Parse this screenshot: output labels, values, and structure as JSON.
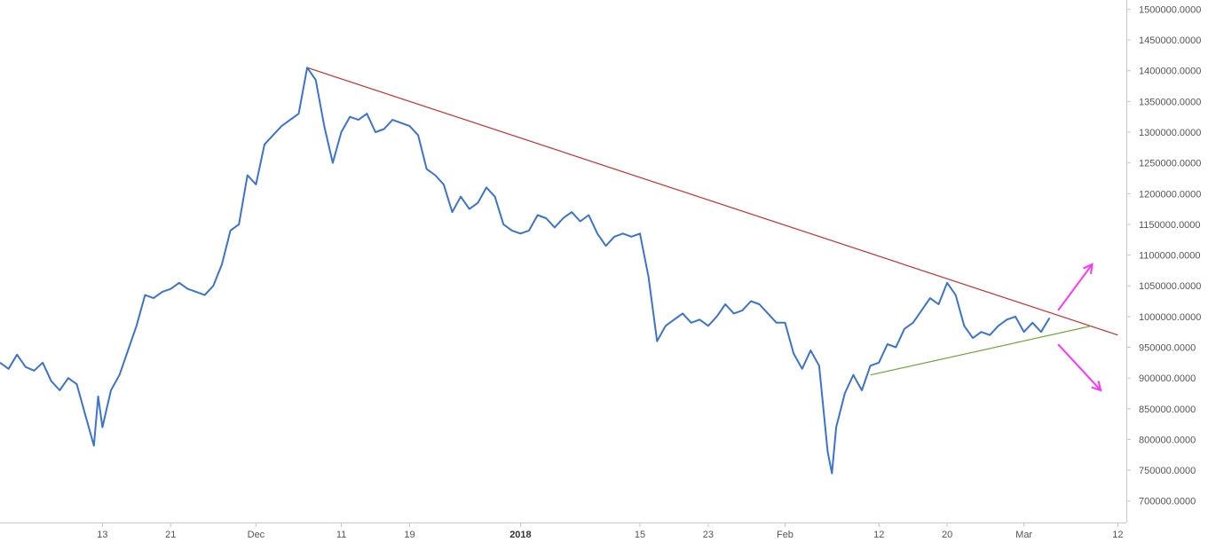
{
  "chart_data": {
    "type": "line",
    "title": "",
    "xlabel": "",
    "ylabel": "",
    "x_range": [
      "2017-11-01",
      "2018-03-13"
    ],
    "ylim": [
      665000,
      1515000
    ],
    "y_ticks": [
      "1500000.0000",
      "1450000.0000",
      "1400000.0000",
      "1350000.0000",
      "1300000.0000",
      "1250000.0000",
      "1200000.0000",
      "1150000.0000",
      "1100000.0000",
      "1050000.0000",
      "1000000.0000",
      "950000.0000",
      "900000.0000",
      "850000.0000",
      "800000.0000",
      "750000.0000",
      "700000.0000"
    ],
    "y_tick_values": [
      1500000,
      1450000,
      1400000,
      1350000,
      1300000,
      1250000,
      1200000,
      1150000,
      1100000,
      1050000,
      1000000,
      950000,
      900000,
      850000,
      800000,
      750000,
      700000
    ],
    "x_ticks": [
      {
        "label": "13",
        "date": "2017-11-13"
      },
      {
        "label": "21",
        "date": "2017-11-21"
      },
      {
        "label": "Dec",
        "date": "2017-12-01"
      },
      {
        "label": "11",
        "date": "2017-12-11"
      },
      {
        "label": "19",
        "date": "2017-12-19"
      },
      {
        "label": "2018",
        "date": "2018-01-01",
        "bold": true
      },
      {
        "label": "15",
        "date": "2018-01-15"
      },
      {
        "label": "23",
        "date": "2018-01-23"
      },
      {
        "label": "Feb",
        "date": "2018-02-01"
      },
      {
        "label": "12",
        "date": "2018-02-12"
      },
      {
        "label": "20",
        "date": "2018-02-20"
      },
      {
        "label": "Mar",
        "date": "2018-03-01"
      },
      {
        "label": "12",
        "date": "2018-03-12"
      }
    ],
    "grid": false,
    "series": [
      {
        "color": "#3a73d0",
        "points": [
          [
            "2017-11-01",
            925000
          ],
          [
            "2017-11-02",
            915000
          ],
          [
            "2017-11-03",
            938000
          ],
          [
            "2017-11-04",
            918000
          ],
          [
            "2017-11-05",
            912000
          ],
          [
            "2017-11-06",
            925000
          ],
          [
            "2017-11-07",
            895000
          ],
          [
            "2017-11-08",
            880000
          ],
          [
            "2017-11-09",
            900000
          ],
          [
            "2017-11-10",
            890000
          ],
          [
            "2017-11-11",
            840000
          ],
          [
            "2017-11-12",
            790000
          ],
          [
            "2017-11-12T12",
            870000
          ],
          [
            "2017-11-13",
            820000
          ],
          [
            "2017-11-14",
            880000
          ],
          [
            "2017-11-15",
            905000
          ],
          [
            "2017-11-16",
            945000
          ],
          [
            "2017-11-17",
            985000
          ],
          [
            "2017-11-18",
            1035000
          ],
          [
            "2017-11-19",
            1030000
          ],
          [
            "2017-11-20",
            1040000
          ],
          [
            "2017-11-21",
            1045000
          ],
          [
            "2017-11-22",
            1055000
          ],
          [
            "2017-11-23",
            1045000
          ],
          [
            "2017-11-24",
            1040000
          ],
          [
            "2017-11-25",
            1035000
          ],
          [
            "2017-11-26",
            1050000
          ],
          [
            "2017-11-27",
            1085000
          ],
          [
            "2017-11-28",
            1140000
          ],
          [
            "2017-11-29",
            1150000
          ],
          [
            "2017-11-30",
            1230000
          ],
          [
            "2017-12-01",
            1215000
          ],
          [
            "2017-12-02",
            1280000
          ],
          [
            "2017-12-03",
            1295000
          ],
          [
            "2017-12-04",
            1310000
          ],
          [
            "2017-12-05",
            1320000
          ],
          [
            "2017-12-06",
            1330000
          ],
          [
            "2017-12-07",
            1405000
          ],
          [
            "2017-12-08",
            1385000
          ],
          [
            "2017-12-09",
            1310000
          ],
          [
            "2017-12-10",
            1250000
          ],
          [
            "2017-12-11",
            1300000
          ],
          [
            "2017-12-12",
            1325000
          ],
          [
            "2017-12-13",
            1320000
          ],
          [
            "2017-12-14",
            1330000
          ],
          [
            "2017-12-15",
            1300000
          ],
          [
            "2017-12-16",
            1305000
          ],
          [
            "2017-12-17",
            1320000
          ],
          [
            "2017-12-18",
            1315000
          ],
          [
            "2017-12-19",
            1310000
          ],
          [
            "2017-12-20",
            1295000
          ],
          [
            "2017-12-21",
            1240000
          ],
          [
            "2017-12-22",
            1230000
          ],
          [
            "2017-12-23",
            1215000
          ],
          [
            "2017-12-24",
            1170000
          ],
          [
            "2017-12-25",
            1195000
          ],
          [
            "2017-12-26",
            1175000
          ],
          [
            "2017-12-27",
            1185000
          ],
          [
            "2017-12-28",
            1210000
          ],
          [
            "2017-12-29",
            1195000
          ],
          [
            "2017-12-30",
            1150000
          ],
          [
            "2017-12-31",
            1140000
          ],
          [
            "2018-01-01",
            1135000
          ],
          [
            "2018-01-02",
            1140000
          ],
          [
            "2018-01-03",
            1165000
          ],
          [
            "2018-01-04",
            1160000
          ],
          [
            "2018-01-05",
            1145000
          ],
          [
            "2018-01-06",
            1160000
          ],
          [
            "2018-01-07",
            1170000
          ],
          [
            "2018-01-08",
            1155000
          ],
          [
            "2018-01-09",
            1165000
          ],
          [
            "2018-01-10",
            1135000
          ],
          [
            "2018-01-11",
            1115000
          ],
          [
            "2018-01-12",
            1130000
          ],
          [
            "2018-01-13",
            1135000
          ],
          [
            "2018-01-14",
            1130000
          ],
          [
            "2018-01-15",
            1135000
          ],
          [
            "2018-01-16",
            1065000
          ],
          [
            "2018-01-17",
            960000
          ],
          [
            "2018-01-18",
            985000
          ],
          [
            "2018-01-19",
            995000
          ],
          [
            "2018-01-20",
            1005000
          ],
          [
            "2018-01-21",
            990000
          ],
          [
            "2018-01-22",
            995000
          ],
          [
            "2018-01-23",
            985000
          ],
          [
            "2018-01-24",
            1000000
          ],
          [
            "2018-01-25",
            1020000
          ],
          [
            "2018-01-26",
            1005000
          ],
          [
            "2018-01-27",
            1010000
          ],
          [
            "2018-01-28",
            1025000
          ],
          [
            "2018-01-29",
            1020000
          ],
          [
            "2018-01-30",
            1005000
          ],
          [
            "2018-01-31",
            990000
          ],
          [
            "2018-02-01",
            990000
          ],
          [
            "2018-02-02",
            940000
          ],
          [
            "2018-02-03",
            915000
          ],
          [
            "2018-02-04",
            945000
          ],
          [
            "2018-02-05",
            920000
          ],
          [
            "2018-02-06",
            780000
          ],
          [
            "2018-02-06T12",
            745000
          ],
          [
            "2018-02-07",
            820000
          ],
          [
            "2018-02-08",
            875000
          ],
          [
            "2018-02-09",
            905000
          ],
          [
            "2018-02-10",
            880000
          ],
          [
            "2018-02-11",
            920000
          ],
          [
            "2018-02-12",
            925000
          ],
          [
            "2018-02-13",
            955000
          ],
          [
            "2018-02-14",
            950000
          ],
          [
            "2018-02-15",
            980000
          ],
          [
            "2018-02-16",
            990000
          ],
          [
            "2018-02-17",
            1010000
          ],
          [
            "2018-02-18",
            1030000
          ],
          [
            "2018-02-19",
            1020000
          ],
          [
            "2018-02-20",
            1055000
          ],
          [
            "2018-02-21",
            1035000
          ],
          [
            "2018-02-22",
            985000
          ],
          [
            "2018-02-23",
            965000
          ],
          [
            "2018-02-24",
            975000
          ],
          [
            "2018-02-25",
            970000
          ],
          [
            "2018-02-26",
            985000
          ],
          [
            "2018-02-27",
            995000
          ],
          [
            "2018-02-28",
            1000000
          ],
          [
            "2018-03-01",
            975000
          ],
          [
            "2018-03-02",
            990000
          ],
          [
            "2018-03-03",
            975000
          ],
          [
            "2018-03-04",
            998000
          ]
        ]
      }
    ],
    "annotations": [
      {
        "type": "trendline",
        "color": "#cc2b2b",
        "from": [
          "2017-12-07",
          1405000
        ],
        "to": [
          "2018-03-12",
          970000
        ]
      },
      {
        "type": "trendline",
        "color": "#6aaa3a",
        "from": [
          "2018-02-11",
          905000
        ],
        "to": [
          "2018-03-09",
          985000
        ]
      },
      {
        "type": "arrow",
        "color": "#ff33ff",
        "direction": "up",
        "from": [
          "2018-03-05",
          1010000
        ],
        "to": [
          "2018-03-09",
          1085000
        ]
      },
      {
        "type": "arrow",
        "color": "#ff33ff",
        "direction": "down",
        "from": [
          "2018-03-05",
          955000
        ],
        "to": [
          "2018-03-10",
          880000
        ]
      }
    ]
  }
}
